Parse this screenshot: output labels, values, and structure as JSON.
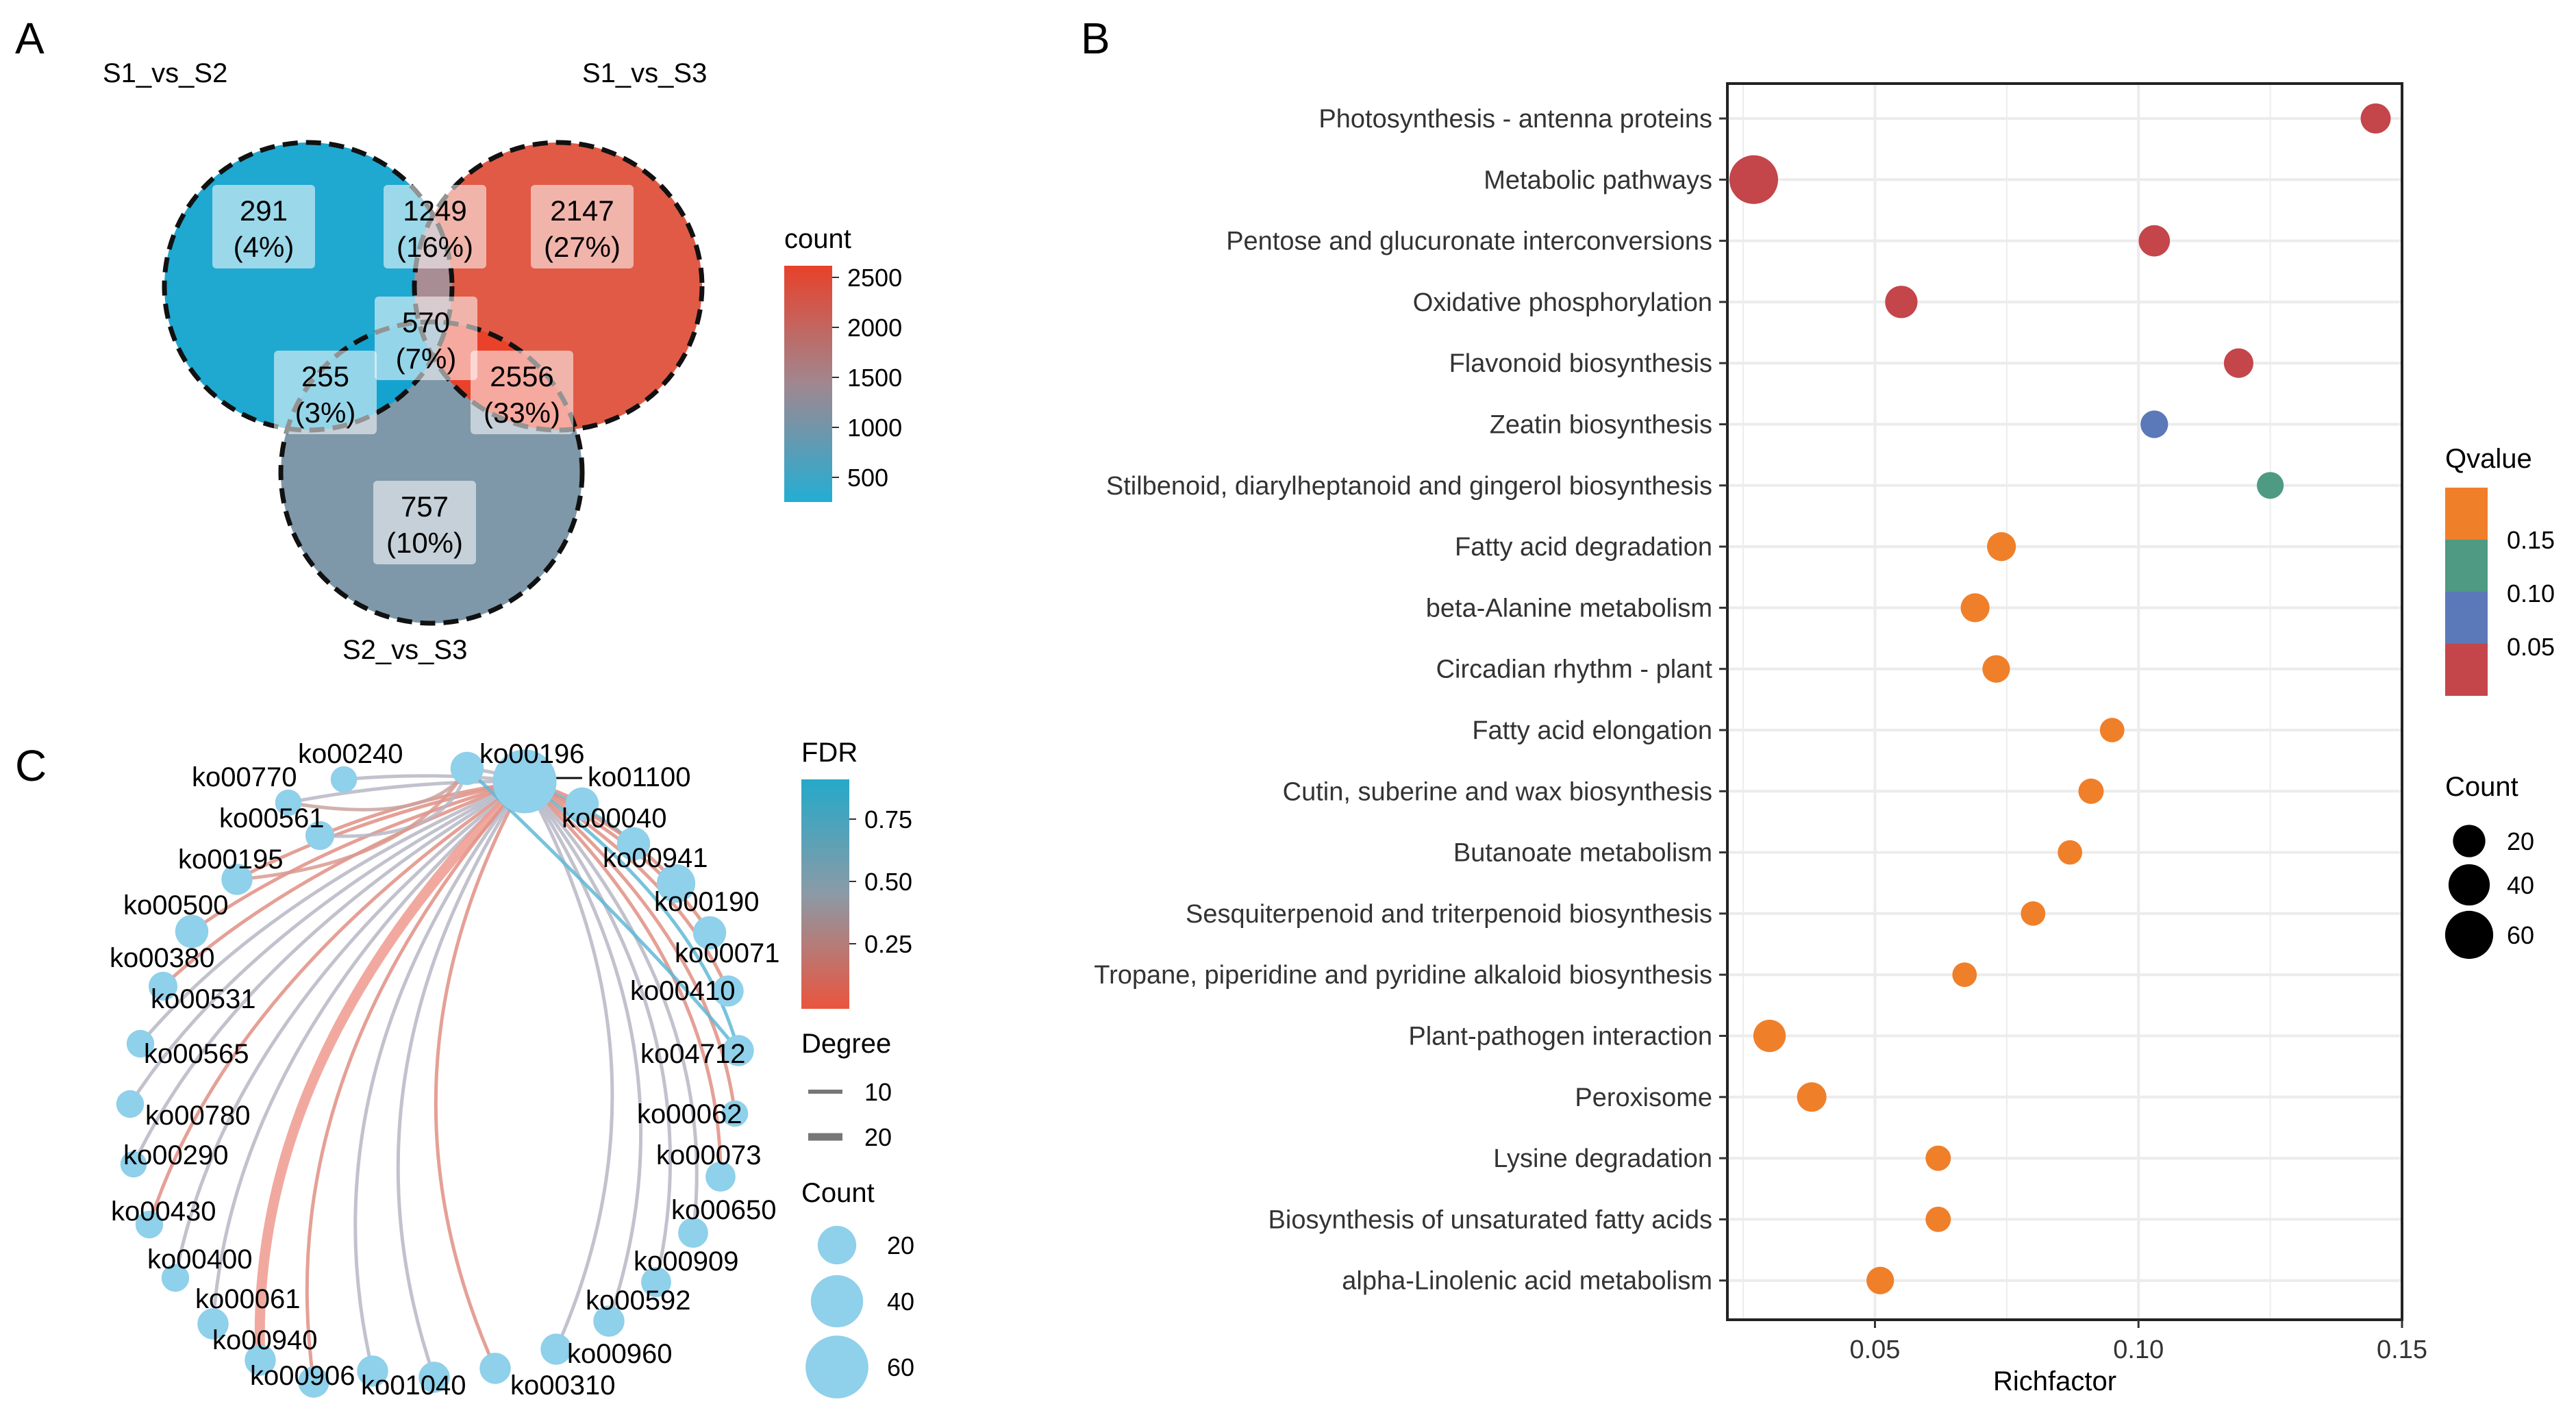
{
  "panels": {
    "a": "A",
    "b": "B",
    "c": "C"
  },
  "venn": {
    "sets": [
      "S1_vs_S2",
      "S1_vs_S3",
      "S2_vs_S3"
    ],
    "regions": [
      {
        "id": "only12",
        "count": "291",
        "pct": "(4%)"
      },
      {
        "id": "12and13",
        "count": "1249",
        "pct": "(16%)"
      },
      {
        "id": "only13",
        "count": "2147",
        "pct": "(27%)"
      },
      {
        "id": "all",
        "count": "570",
        "pct": "(7%)"
      },
      {
        "id": "12and23",
        "count": "255",
        "pct": "(3%)"
      },
      {
        "id": "13and23",
        "count": "2556",
        "pct": "(33%)"
      },
      {
        "id": "only23",
        "count": "757",
        "pct": "(10%)"
      }
    ],
    "legend": {
      "title": "count",
      "ticks": [
        "2500",
        "2000",
        "1500",
        "1000",
        "500"
      ],
      "colors": [
        "#e8412a",
        "#8e8ea0",
        "#23aed4"
      ]
    }
  },
  "chart_data": [
    {
      "type": "scatter",
      "title": "",
      "xlabel": "Richfactor",
      "ylabel": "",
      "xlim": [
        0.022,
        0.15
      ],
      "xticks": [
        "0.05",
        "0.10",
        "0.15"
      ],
      "categories": [
        "Photosynthesis - antenna proteins",
        "Metabolic pathways",
        "Pentose and glucuronate interconversions",
        "Oxidative phosphorylation",
        "Flavonoid biosynthesis",
        "Zeatin biosynthesis",
        "Stilbenoid, diarylheptanoid and gingerol biosynthesis",
        "Fatty acid degradation",
        "beta-Alanine metabolism",
        "Circadian rhythm - plant",
        "Fatty acid elongation",
        "Cutin, suberine and wax biosynthesis",
        "Butanoate metabolism",
        "Sesquiterpenoid and triterpenoid biosynthesis",
        "Tropane, piperidine and pyridine alkaloid biosynthesis",
        "Plant-pathogen interaction",
        "Peroxisome",
        "Lysine degradation",
        "Biosynthesis of unsaturated fatty acids",
        "alpha-Linolenic acid metabolism"
      ],
      "richfactor": [
        0.145,
        0.027,
        0.103,
        0.055,
        0.119,
        0.103,
        0.125,
        0.074,
        0.069,
        0.073,
        0.095,
        0.091,
        0.087,
        0.08,
        0.067,
        0.03,
        0.038,
        0.062,
        0.062,
        0.051
      ],
      "count": [
        16,
        62,
        18,
        20,
        15,
        12,
        11,
        14,
        14,
        12,
        8,
        9,
        8,
        8,
        8,
        20,
        15,
        9,
        9,
        12
      ],
      "qvalue": [
        0.02,
        0.02,
        0.02,
        0.02,
        0.02,
        0.06,
        0.11,
        0.16,
        0.16,
        0.16,
        0.16,
        0.16,
        0.16,
        0.16,
        0.16,
        0.16,
        0.16,
        0.16,
        0.16,
        0.16
      ],
      "legend_qvalue": {
        "title": "Qvalue",
        "ticks": [
          "0.15",
          "0.10",
          "0.05"
        ],
        "colors": [
          "#f07f2a",
          "#4f9a82",
          "#5b78b8",
          "#c4454a"
        ]
      },
      "legend_count": {
        "title": "Count",
        "values": [
          20,
          40,
          60
        ],
        "labels": [
          "20",
          "40",
          "60"
        ]
      }
    },
    {
      "type": "network",
      "hub": "ko01100",
      "nodes": [
        {
          "id": "ko00240",
          "count": 8
        },
        {
          "id": "ko00196",
          "count": 14
        },
        {
          "id": "ko01100",
          "count": 62
        },
        {
          "id": "ko00770",
          "count": 8
        },
        {
          "id": "ko00040",
          "count": 14
        },
        {
          "id": "ko00561",
          "count": 10
        },
        {
          "id": "ko00941",
          "count": 14
        },
        {
          "id": "ko00195",
          "count": 12
        },
        {
          "id": "ko00190",
          "count": 20
        },
        {
          "id": "ko00500",
          "count": 14
        },
        {
          "id": "ko00071",
          "count": 14
        },
        {
          "id": "ko00380",
          "count": 10
        },
        {
          "id": "ko00410",
          "count": 12
        },
        {
          "id": "ko00531",
          "count": 9
        },
        {
          "id": "ko04712",
          "count": 12
        },
        {
          "id": "ko00565",
          "count": 9
        },
        {
          "id": "ko00062",
          "count": 8
        },
        {
          "id": "ko00780",
          "count": 8
        },
        {
          "id": "ko00073",
          "count": 11
        },
        {
          "id": "ko00290",
          "count": 9
        },
        {
          "id": "ko00650",
          "count": 11
        },
        {
          "id": "ko00430",
          "count": 9
        },
        {
          "id": "ko00909",
          "count": 11
        },
        {
          "id": "ko00400",
          "count": 12
        },
        {
          "id": "ko00592",
          "count": 12
        },
        {
          "id": "ko00061",
          "count": 12
        },
        {
          "id": "ko00960",
          "count": 12
        },
        {
          "id": "ko00940",
          "count": 12
        },
        {
          "id": "ko00310",
          "count": 12
        },
        {
          "id": "ko00906",
          "count": 12
        },
        {
          "id": "ko01040",
          "count": 12
        }
      ],
      "legend_fdr": {
        "title": "FDR",
        "ticks": [
          "0.75",
          "0.50",
          "0.25"
        ],
        "colors": [
          "#24a9c9",
          "#8b9aa6",
          "#ea553e"
        ]
      },
      "legend_degree": {
        "title": "Degree",
        "values": [
          10,
          20
        ],
        "labels": [
          "10",
          "20"
        ]
      },
      "legend_count": {
        "title": "Count",
        "values": [
          20,
          40,
          60
        ],
        "labels": [
          "20",
          "40",
          "60"
        ]
      }
    }
  ]
}
